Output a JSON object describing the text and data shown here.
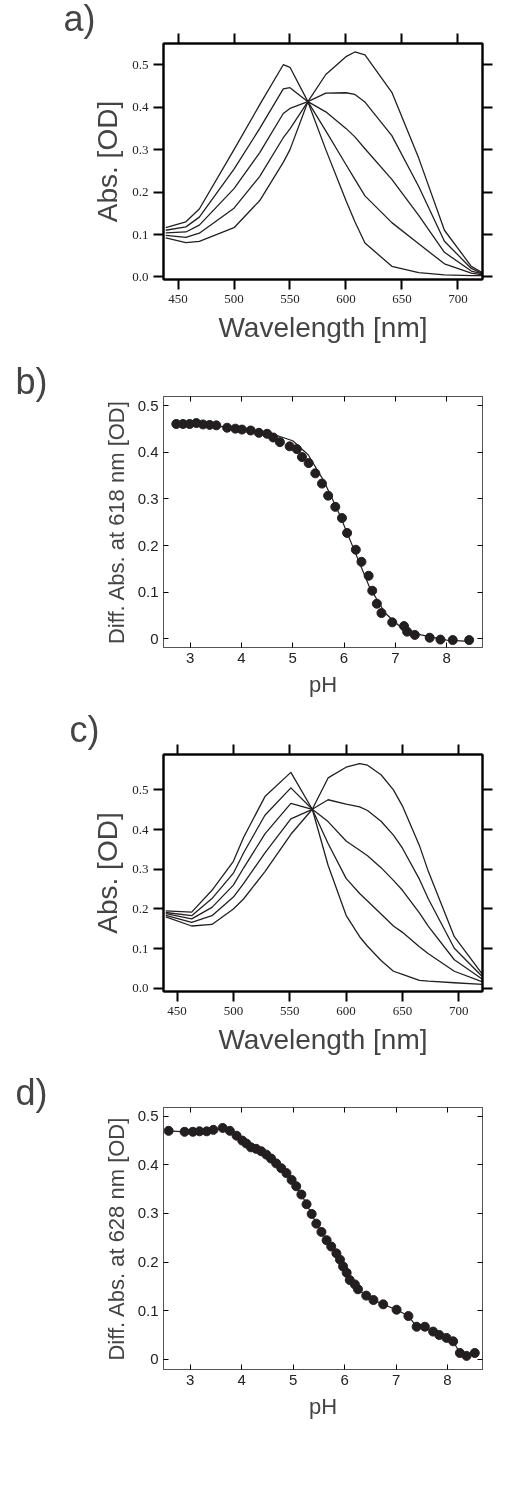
{
  "chart_data": [
    {
      "type": "line",
      "title": "a)",
      "xlabel": "Wavelength [nm]",
      "ylabel": "Abs. [OD]",
      "xlim": [
        437,
        722
      ],
      "ylim": [
        -0.006,
        0.55
      ],
      "xticks": [
        450,
        500,
        550,
        600,
        650,
        700
      ],
      "yticks": [
        {
          "value": 0,
          "label": "0.0"
        },
        {
          "value": 0.1,
          "label": "0.1"
        },
        {
          "value": 0.2,
          "label": "0.2"
        },
        {
          "value": 0.3,
          "label": "0.3"
        },
        {
          "value": 0.4,
          "label": "0.4"
        },
        {
          "value": 0.5,
          "label": "0.5"
        }
      ],
      "x": [
        439,
        457,
        469,
        500,
        523,
        544,
        550,
        566,
        582,
        600,
        608,
        617,
        641,
        665,
        688,
        712,
        722
      ],
      "series": [
        {
          "color": "#231f20",
          "values": [
            0.116,
            0.13,
            0.16,
            0.3,
            0.406,
            0.5,
            0.494,
            0.413,
            0.3,
            0.18,
            0.13,
            0.08,
            0.025,
            0.01,
            0.005,
            0.003,
            0.003
          ]
        },
        {
          "color": "#231f20",
          "values": [
            0.11,
            0.118,
            0.141,
            0.254,
            0.35,
            0.443,
            0.446,
            0.413,
            0.344,
            0.265,
            0.23,
            0.191,
            0.128,
            0.078,
            0.031,
            0.009,
            0.005
          ]
        },
        {
          "color": "#231f20",
          "values": [
            0.104,
            0.106,
            0.122,
            0.208,
            0.293,
            0.385,
            0.397,
            0.413,
            0.389,
            0.35,
            0.33,
            0.302,
            0.23,
            0.145,
            0.058,
            0.014,
            0.007
          ]
        },
        {
          "color": "#231f20",
          "values": [
            0.098,
            0.093,
            0.103,
            0.162,
            0.237,
            0.328,
            0.349,
            0.413,
            0.433,
            0.434,
            0.43,
            0.412,
            0.333,
            0.213,
            0.084,
            0.02,
            0.008
          ]
        },
        {
          "color": "#231f20",
          "values": [
            0.092,
            0.081,
            0.084,
            0.116,
            0.18,
            0.27,
            0.3,
            0.413,
            0.477,
            0.519,
            0.53,
            0.523,
            0.435,
            0.28,
            0.11,
            0.025,
            0.01
          ]
        }
      ]
    },
    {
      "type": "scatter",
      "title": "b)",
      "xlabel": "pH",
      "ylabel": "Diff. Abs. at 618 nm [OD]",
      "xlim": [
        2.48,
        8.7
      ],
      "ylim": [
        -0.019,
        0.52
      ],
      "xticks": [
        3,
        4,
        5,
        6,
        7,
        8
      ],
      "yticks": [
        0,
        0.1,
        0.2,
        0.3,
        0.4,
        0.5
      ],
      "marker": "circle",
      "series": [
        {
          "color": "#231f20",
          "x": [
            2.73,
            2.86,
            2.99,
            3.12,
            3.25,
            3.38,
            3.51,
            3.72,
            3.88,
            4.01,
            4.18,
            4.34,
            4.5,
            4.62,
            4.75,
            4.94,
            5.08,
            5.18,
            5.31,
            5.44,
            5.57,
            5.69,
            5.83,
            5.96,
            6.06,
            6.23,
            6.34,
            6.48,
            6.55,
            6.64,
            6.73,
            6.94,
            7.17,
            7.23,
            7.38,
            7.67,
            7.88,
            8.12,
            8.44
          ],
          "values": [
            0.461,
            0.461,
            0.461,
            0.463,
            0.46,
            0.459,
            0.458,
            0.453,
            0.451,
            0.449,
            0.447,
            0.442,
            0.44,
            0.432,
            0.422,
            0.413,
            0.407,
            0.39,
            0.377,
            0.355,
            0.333,
            0.307,
            0.283,
            0.259,
            0.227,
            0.191,
            0.165,
            0.135,
            0.103,
            0.075,
            0.055,
            0.035,
            0.027,
            0.015,
            0.008,
            0.002,
            -0.002,
            -0.003,
            -0.003
          ]
        },
        {
          "type": "line",
          "marker": "none",
          "color": "#231f20",
          "x": [
            2.73,
            4.0,
            4.5,
            5.0,
            5.3,
            5.6,
            5.9,
            6.2,
            6.5,
            6.8,
            7.1,
            7.5,
            8.0,
            8.44
          ],
          "values": [
            0.463,
            0.452,
            0.443,
            0.425,
            0.395,
            0.34,
            0.27,
            0.19,
            0.11,
            0.055,
            0.025,
            0.008,
            -0.003,
            -0.006
          ]
        }
      ]
    },
    {
      "type": "line",
      "title": "c)",
      "xlabel": "Wavelength [nm]",
      "ylabel": "Abs. [OD]",
      "xlim": [
        438,
        721
      ],
      "ylim": [
        -0.008,
        0.589
      ],
      "xticks": [
        450,
        500,
        550,
        600,
        650,
        700
      ],
      "yticks": [
        {
          "value": 0,
          "label": "0.0"
        },
        {
          "value": 0.1,
          "label": "0.1"
        },
        {
          "value": 0.2,
          "label": "0.2"
        },
        {
          "value": 0.3,
          "label": "0.3"
        },
        {
          "value": 0.4,
          "label": "0.4"
        },
        {
          "value": 0.5,
          "label": "0.5"
        }
      ],
      "x": [
        440,
        463,
        481,
        500,
        509,
        528,
        551,
        570,
        584,
        600,
        612,
        619,
        631,
        642,
        650,
        665,
        673,
        696,
        721
      ],
      "series": [
        {
          "color": "#231f20",
          "values": [
            0.195,
            0.192,
            0.247,
            0.32,
            0.38,
            0.483,
            0.544,
            0.451,
            0.31,
            0.184,
            0.13,
            0.106,
            0.07,
            0.043,
            0.035,
            0.02,
            0.018,
            0.014,
            0.01
          ]
        },
        {
          "color": "#231f20",
          "values": [
            0.191,
            0.183,
            0.226,
            0.29,
            0.341,
            0.436,
            0.505,
            0.451,
            0.365,
            0.277,
            0.239,
            0.22,
            0.187,
            0.157,
            0.141,
            0.105,
            0.087,
            0.043,
            0.016
          ]
        },
        {
          "color": "#231f20",
          "values": [
            0.188,
            0.175,
            0.204,
            0.26,
            0.303,
            0.389,
            0.466,
            0.451,
            0.42,
            0.371,
            0.348,
            0.334,
            0.304,
            0.272,
            0.247,
            0.19,
            0.156,
            0.072,
            0.023
          ]
        },
        {
          "color": "#231f20",
          "values": [
            0.184,
            0.166,
            0.183,
            0.23,
            0.264,
            0.341,
            0.427,
            0.451,
            0.475,
            0.464,
            0.457,
            0.448,
            0.421,
            0.386,
            0.353,
            0.275,
            0.225,
            0.101,
            0.029
          ]
        },
        {
          "color": "#231f20",
          "values": [
            0.18,
            0.157,
            0.161,
            0.2,
            0.225,
            0.294,
            0.388,
            0.451,
            0.53,
            0.557,
            0.566,
            0.562,
            0.538,
            0.5,
            0.459,
            0.36,
            0.294,
            0.13,
            0.035
          ]
        }
      ]
    },
    {
      "type": "line",
      "title": "d)",
      "xlabel": "pH",
      "ylabel": "Diff. Abs. at 628 nm [OD]",
      "xlim": [
        2.48,
        8.68
      ],
      "ylim": [
        -0.021,
        0.518
      ],
      "xticks": [
        3,
        4,
        5,
        6,
        7,
        8
      ],
      "yticks": [
        0,
        0.1,
        0.2,
        0.3,
        0.4,
        0.5
      ],
      "marker": "circle",
      "series": [
        {
          "color": "#231f20",
          "x": [
            2.58,
            2.89,
            3.05,
            3.18,
            3.32,
            3.45,
            3.63,
            3.77,
            3.9,
            4.01,
            4.09,
            4.18,
            4.28,
            4.38,
            4.48,
            4.57,
            4.67,
            4.77,
            4.87,
            4.97,
            5.06,
            5.16,
            5.26,
            5.36,
            5.45,
            5.55,
            5.65,
            5.74,
            5.84,
            5.91,
            5.97,
            6.04,
            6.1,
            6.2,
            6.26,
            6.42,
            6.56,
            6.75,
            7.01,
            7.24,
            7.4,
            7.56,
            7.72,
            7.84,
            7.98,
            8.11,
            8.24,
            8.37,
            8.53
          ],
          "values": [
            0.47,
            0.468,
            0.468,
            0.469,
            0.469,
            0.472,
            0.476,
            0.47,
            0.46,
            0.45,
            0.444,
            0.436,
            0.433,
            0.428,
            0.421,
            0.413,
            0.403,
            0.393,
            0.383,
            0.369,
            0.356,
            0.339,
            0.319,
            0.299,
            0.279,
            0.262,
            0.245,
            0.232,
            0.218,
            0.205,
            0.191,
            0.178,
            0.163,
            0.154,
            0.144,
            0.131,
            0.122,
            0.113,
            0.102,
            0.089,
            0.067,
            0.067,
            0.057,
            0.05,
            0.044,
            0.037,
            0.013,
            0.007,
            0.013
          ]
        }
      ]
    }
  ]
}
